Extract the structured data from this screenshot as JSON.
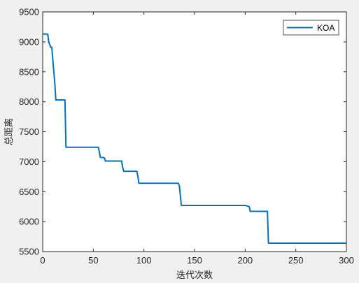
{
  "chart_data": {
    "type": "line",
    "xlabel": "迭代次数",
    "ylabel": "总距离",
    "xlim": [
      0,
      300
    ],
    "ylim": [
      5500,
      9500
    ],
    "x_ticks": [
      0,
      50,
      100,
      150,
      200,
      250,
      300
    ],
    "y_ticks": [
      5500,
      6000,
      6500,
      7000,
      7500,
      8000,
      8500,
      9000,
      9500
    ],
    "grid": false,
    "legend_position": "top-right",
    "series": [
      {
        "name": "KOA",
        "color": "#0072BD",
        "x": [
          0,
          5,
          6,
          8,
          9,
          10,
          12,
          13,
          16,
          20,
          22,
          23,
          25,
          30,
          40,
          50,
          55,
          56,
          57,
          60,
          61,
          62,
          63,
          70,
          78,
          79,
          80,
          85,
          93,
          94,
          95,
          100,
          110,
          120,
          134,
          135,
          136,
          137,
          140,
          160,
          180,
          200,
          204,
          205,
          210,
          220,
          222,
          223,
          230,
          250,
          280,
          300
        ],
        "y": [
          9130,
          9130,
          9000,
          8910,
          8910,
          8700,
          8300,
          8030,
          8030,
          8030,
          8030,
          7240,
          7240,
          7240,
          7240,
          7240,
          7240,
          7160,
          7070,
          7070,
          7060,
          7010,
          7010,
          7010,
          7010,
          6910,
          6840,
          6840,
          6840,
          6760,
          6640,
          6640,
          6640,
          6640,
          6640,
          6600,
          6430,
          6270,
          6270,
          6270,
          6270,
          6270,
          6250,
          6170,
          6170,
          6170,
          6170,
          5640,
          5640,
          5640,
          5640,
          5640
        ]
      }
    ]
  }
}
